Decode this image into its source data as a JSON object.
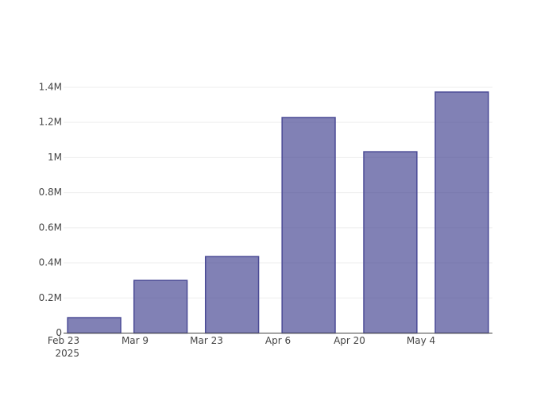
{
  "chart_data": {
    "type": "bar",
    "x": [
      "2025-03-01",
      "2025-03-14",
      "2025-03-28",
      "2025-04-12",
      "2025-04-28",
      "2025-05-12"
    ],
    "values": [
      88000,
      300000,
      436000,
      1228000,
      1033000,
      1373000
    ],
    "color": "#4b4b96",
    "xlim": [
      "2025-02-23",
      "2025-05-18"
    ],
    "xticks": [
      {
        "value": "2025-02-23",
        "label": "Feb 23"
      },
      {
        "value": "2025-03-09",
        "label": "Mar 9"
      },
      {
        "value": "2025-03-23",
        "label": "Mar 23"
      },
      {
        "value": "2025-04-06",
        "label": "Apr 6"
      },
      {
        "value": "2025-04-20",
        "label": "Apr 20"
      },
      {
        "value": "2025-05-04",
        "label": "May 4"
      }
    ],
    "year_label": "2025",
    "ylim": [
      0,
      1445000
    ],
    "yticks": [
      0,
      {
        "value": 200000,
        "label": "0.2M"
      },
      {
        "value": 400000,
        "label": "0.4M"
      },
      {
        "value": 600000,
        "label": "0.6M"
      },
      {
        "value": 800000,
        "label": "0.8M"
      },
      {
        "value": 1000000,
        "label": "1M"
      },
      {
        "value": 1200000,
        "label": "1.2M"
      },
      {
        "value": 1400000,
        "label": "1.4M"
      }
    ],
    "grid": true
  }
}
